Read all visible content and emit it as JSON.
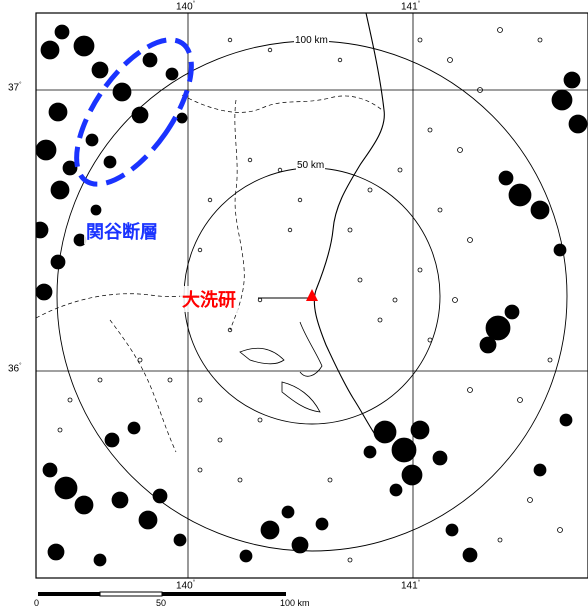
{
  "map": {
    "lon_labels_top": [
      "140",
      "141"
    ],
    "lon_labels_bottom": [
      "140",
      "141"
    ],
    "lat_labels": [
      "37",
      "36"
    ],
    "degree_symbol": "°",
    "rings": [
      {
        "label": "100 km",
        "radius_km": 100
      },
      {
        "label": "50 km",
        "radius_km": 50
      }
    ],
    "fault": {
      "label": "関谷断層",
      "color": "#1a33ff"
    },
    "site": {
      "label": "大洗研",
      "color": "#ff0000",
      "marker": "triangle-icon"
    },
    "scale_bar": {
      "labels": [
        "0",
        "50",
        "100 km"
      ]
    }
  }
}
